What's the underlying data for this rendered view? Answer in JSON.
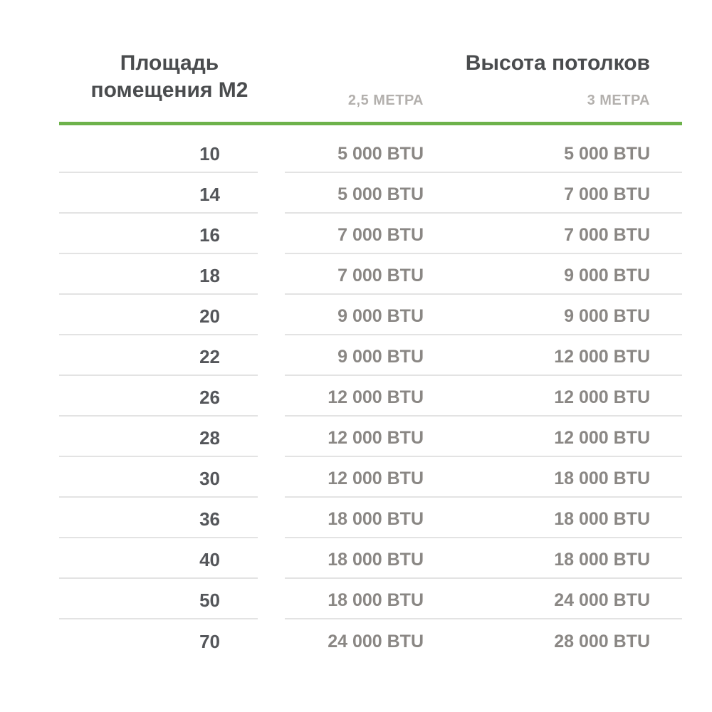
{
  "table": {
    "area_header_line1": "Площадь",
    "area_header_line2": "помещения М2",
    "ceiling_header": "Высота потолков",
    "subheaders": [
      "2,5 МЕТРА",
      "3 МЕТРА"
    ],
    "rows": [
      {
        "area": "10",
        "btu_2_5": "5 000 BTU",
        "btu_3": "5 000 BTU"
      },
      {
        "area": "14",
        "btu_2_5": "5 000 BTU",
        "btu_3": "7 000 BTU"
      },
      {
        "area": "16",
        "btu_2_5": "7 000 BTU",
        "btu_3": "7 000 BTU"
      },
      {
        "area": "18",
        "btu_2_5": "7 000 BTU",
        "btu_3": "9 000 BTU"
      },
      {
        "area": "20",
        "btu_2_5": "9 000 BTU",
        "btu_3": "9 000 BTU"
      },
      {
        "area": "22",
        "btu_2_5": "9 000 BTU",
        "btu_3": "12 000 BTU"
      },
      {
        "area": "26",
        "btu_2_5": "12 000 BTU",
        "btu_3": "12 000 BTU"
      },
      {
        "area": "28",
        "btu_2_5": "12 000 BTU",
        "btu_3": "12 000 BTU"
      },
      {
        "area": "30",
        "btu_2_5": "12 000 BTU",
        "btu_3": "18 000 BTU"
      },
      {
        "area": "36",
        "btu_2_5": "18 000 BTU",
        "btu_3": "18 000 BTU"
      },
      {
        "area": "40",
        "btu_2_5": "18 000 BTU",
        "btu_3": "18 000 BTU"
      },
      {
        "area": "50",
        "btu_2_5": "18 000 BTU",
        "btu_3": "24 000 BTU"
      },
      {
        "area": "70",
        "btu_2_5": "24 000 BTU",
        "btu_3": "28 000 BTU"
      }
    ]
  },
  "colors": {
    "accent_green": "#6db24b",
    "divider": "#e3e3e3",
    "header_text": "#4a4c4e",
    "subheader_text": "#b3b0ad",
    "area_text": "#54565a",
    "btu_text": "#8a8784",
    "background": "#ffffff"
  },
  "chart_data": {
    "type": "table",
    "title": "",
    "columns": [
      "Площадь помещения М2",
      "Высота потолков — 2,5 метра",
      "Высота потолков — 3 метра"
    ],
    "area_m2": [
      10,
      14,
      16,
      18,
      20,
      22,
      26,
      28,
      30,
      36,
      40,
      50,
      70
    ],
    "btu_ceiling_2_5m": [
      5000,
      5000,
      7000,
      7000,
      9000,
      9000,
      12000,
      12000,
      12000,
      18000,
      18000,
      18000,
      24000
    ],
    "btu_ceiling_3m": [
      5000,
      7000,
      7000,
      9000,
      9000,
      12000,
      12000,
      12000,
      18000,
      18000,
      18000,
      24000,
      28000
    ],
    "unit": "BTU",
    "layout": "first column right-aligned, two BTU columns right-aligned, green rule under header, light gray row dividers"
  }
}
